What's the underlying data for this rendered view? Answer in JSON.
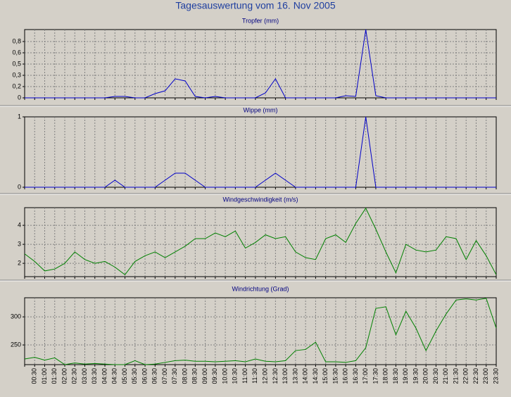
{
  "title": "Tagesauswertung vom 16. Nov 2005",
  "chart_data": [
    {
      "type": "line",
      "title": "Tropfer (mm)",
      "color": "#0000c8",
      "values": [
        0,
        0,
        0,
        0,
        0,
        0,
        0,
        0,
        0,
        0.02,
        0.02,
        0,
        0,
        0.06,
        0.1,
        0.27,
        0.24,
        0.02,
        0,
        0.02,
        0,
        0,
        0,
        0,
        0.07,
        0.27,
        0,
        0,
        0,
        0,
        0,
        0,
        0.03,
        0.02,
        0.97,
        0.03,
        0,
        0,
        0,
        0,
        0,
        0,
        0,
        0,
        0,
        0,
        0,
        0
      ],
      "ylim": [
        0,
        0.97
      ],
      "yticks": [
        0,
        {
          "value": 0.16,
          "label": "0,2"
        },
        {
          "value": 0.32,
          "label": "0,3"
        },
        {
          "value": 0.48,
          "label": "0,5"
        },
        {
          "value": 0.64,
          "label": "0,6"
        },
        {
          "value": 0.8,
          "label": "0,8"
        }
      ],
      "grid": true
    },
    {
      "type": "line",
      "title": "Wippe (mm)",
      "color": "#0000c8",
      "values": [
        0,
        0,
        0,
        0,
        0,
        0,
        0,
        0,
        0,
        0.1,
        0,
        0,
        0,
        0,
        0.1,
        0.2,
        0.2,
        0.1,
        0,
        0,
        0,
        0,
        0,
        0,
        0.1,
        0.2,
        0.1,
        0,
        0,
        0,
        0,
        0,
        0,
        0,
        1,
        0,
        0,
        0,
        0,
        0,
        0,
        0,
        0,
        0,
        0,
        0,
        0,
        0
      ],
      "ylim": [
        0,
        1
      ],
      "yticks": [
        0,
        1
      ],
      "grid": true
    },
    {
      "type": "line",
      "title": "Windgeschwindigkeit (m/s)",
      "color": "#008000",
      "values": [
        2.5,
        2.1,
        1.6,
        1.7,
        2.0,
        2.6,
        2.2,
        2.0,
        2.1,
        1.8,
        1.4,
        2.1,
        2.4,
        2.6,
        2.3,
        2.6,
        2.9,
        3.3,
        3.3,
        3.6,
        3.4,
        3.7,
        2.8,
        3.1,
        3.5,
        3.3,
        3.4,
        2.6,
        2.3,
        2.2,
        3.3,
        3.5,
        3.1,
        4.1,
        4.9,
        3.8,
        2.6,
        1.5,
        3.0,
        2.7,
        2.6,
        2.7,
        3.4,
        3.3,
        2.2,
        3.2,
        2.4,
        1.4
      ],
      "ylim": [
        1.3,
        4.93
      ],
      "yticks": [
        2,
        3,
        4
      ],
      "grid": true
    },
    {
      "type": "line",
      "title": "Windrichtung (Grad)",
      "color": "#008000",
      "categories": [
        null,
        "00:30",
        "01:00",
        "01:30",
        "02:00",
        "02:30",
        "03:00",
        "03:30",
        "04:00",
        "04:30",
        "05:00",
        "05:30",
        "06:00",
        "06:30",
        "07:00",
        "07:30",
        "08:00",
        "08:30",
        "09:00",
        "09:30",
        "10:00",
        "10:30",
        "11:00",
        "11:30",
        "12:00",
        "12:30",
        "13:00",
        "13:30",
        "14:00",
        "14:30",
        "15:00",
        "15:30",
        "16:00",
        "16:30",
        "17:00",
        "17:30",
        "18:00",
        "18:30",
        "19:00",
        "19:30",
        "20:00",
        "20:30",
        "21:00",
        "21:30",
        "22:00",
        "22:30",
        "23:00",
        "23:30"
      ],
      "values": [
        225,
        228,
        223,
        227,
        215,
        218,
        216,
        217,
        216,
        215,
        215,
        222,
        215,
        216,
        219,
        222,
        223,
        221,
        221,
        220,
        221,
        222,
        220,
        225,
        221,
        220,
        222,
        240,
        242,
        255,
        220,
        220,
        219,
        222,
        245,
        315,
        318,
        268,
        310,
        280,
        240,
        275,
        305,
        330,
        332,
        330,
        333,
        280
      ],
      "ylim": [
        215,
        334
      ],
      "yticks": [
        250,
        300
      ],
      "grid": true
    }
  ]
}
